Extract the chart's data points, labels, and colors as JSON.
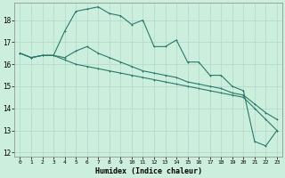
{
  "title": "",
  "xlabel": "Humidex (Indice chaleur)",
  "ylabel": "",
  "bg_color": "#cceedd",
  "grid_color": "#aaddcc",
  "line_color": "#2a7a6a",
  "xlim": [
    -0.5,
    23.5
  ],
  "ylim": [
    11.8,
    18.8
  ],
  "xticks": [
    0,
    1,
    2,
    3,
    4,
    5,
    6,
    7,
    8,
    9,
    10,
    11,
    12,
    13,
    14,
    15,
    16,
    17,
    18,
    19,
    20,
    21,
    22,
    23
  ],
  "yticks": [
    12,
    13,
    14,
    15,
    16,
    17,
    18
  ],
  "line1_y": [
    16.5,
    16.3,
    16.4,
    16.4,
    17.5,
    18.4,
    18.5,
    18.6,
    18.3,
    18.2,
    17.8,
    18.0,
    16.8,
    16.8,
    17.1,
    16.1,
    16.1,
    15.5,
    15.5,
    15.0,
    14.8,
    12.5,
    12.3,
    13.0
  ],
  "line2_y": [
    16.5,
    16.3,
    16.4,
    16.4,
    16.3,
    16.6,
    16.8,
    16.5,
    16.3,
    16.1,
    15.9,
    15.7,
    15.6,
    15.5,
    15.4,
    15.2,
    15.1,
    15.0,
    14.9,
    14.7,
    14.6,
    14.2,
    13.8,
    13.5
  ],
  "line3_y": [
    16.5,
    16.3,
    16.4,
    16.4,
    16.2,
    16.0,
    15.9,
    15.8,
    15.7,
    15.6,
    15.5,
    15.4,
    15.3,
    15.2,
    15.1,
    15.0,
    14.9,
    14.8,
    14.7,
    14.6,
    14.5,
    14.0,
    13.5,
    13.0
  ]
}
